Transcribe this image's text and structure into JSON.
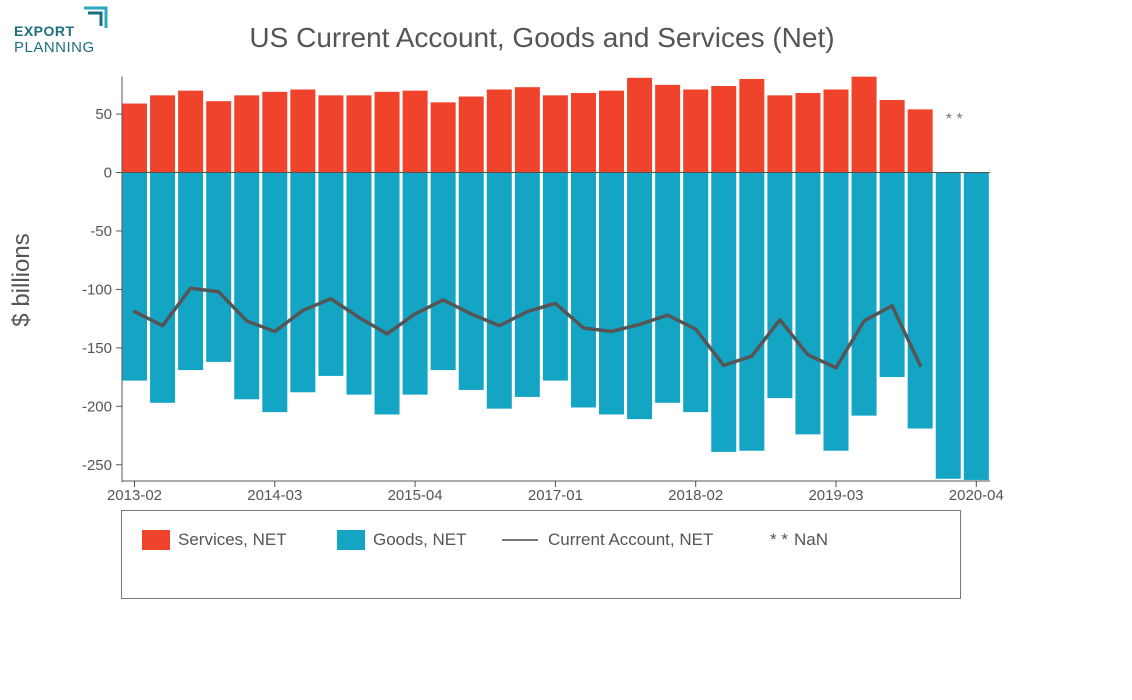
{
  "logo": {
    "line1": "EXPORT",
    "line2": "PLANNING"
  },
  "chart_data": {
    "type": "bar",
    "title": "US Current Account, Goods and Services (Net)",
    "ylabel": "$ billions",
    "xlabel": "",
    "ylim": [
      -265,
      82
    ],
    "yticks": [
      50,
      0,
      -50,
      -100,
      -150,
      -200,
      -250
    ],
    "xticks": [
      "2013-02",
      "2014-03",
      "2015-04",
      "2017-01",
      "2018-02",
      "2019-03",
      "2020-04"
    ],
    "xtick_indices": [
      0,
      5,
      10,
      15,
      20,
      25,
      30
    ],
    "grid": false,
    "legend_position": "bottom",
    "nan_marker": "* *",
    "series": [
      {
        "name": "Services, NET",
        "type": "bar",
        "color": "#ef432b",
        "values": [
          59,
          66,
          70,
          61,
          66,
          69,
          71,
          66,
          66,
          69,
          70,
          60,
          65,
          71,
          73,
          66,
          68,
          70,
          81,
          75,
          71,
          74,
          80,
          66,
          68,
          71,
          82,
          62,
          54,
          null,
          null
        ]
      },
      {
        "name": "Goods, NET",
        "type": "bar",
        "color": "#14a5c5",
        "values": [
          -178,
          -197,
          -169,
          -162,
          -194,
          -205,
          -188,
          -174,
          -190,
          -207,
          -190,
          -169,
          -186,
          -202,
          -192,
          -178,
          -201,
          -207,
          -211,
          -197,
          -205,
          -239,
          -238,
          -193,
          -224,
          -238,
          -208,
          -175,
          -219,
          -262,
          -263
        ]
      },
      {
        "name": "Current Account, NET",
        "type": "line",
        "color": "#555555",
        "values": [
          -119,
          -131,
          -99,
          -102,
          -127,
          -136,
          -118,
          -108,
          -124,
          -138,
          -121,
          -109,
          -121,
          -131,
          -119,
          -112,
          -133,
          -136,
          -130,
          -122,
          -134,
          -165,
          -157,
          -126,
          -156,
          -167,
          -127,
          -114,
          -165,
          null,
          null
        ]
      }
    ],
    "legend": [
      {
        "label": "Services, NET",
        "kind": "bar",
        "color": "#ef432b"
      },
      {
        "label": "Goods, NET",
        "kind": "bar",
        "color": "#14a5c5"
      },
      {
        "label": "Current Account, NET",
        "kind": "line",
        "color": "#777777"
      },
      {
        "label": "NaN",
        "kind": "nan",
        "marker": "* *"
      }
    ]
  }
}
